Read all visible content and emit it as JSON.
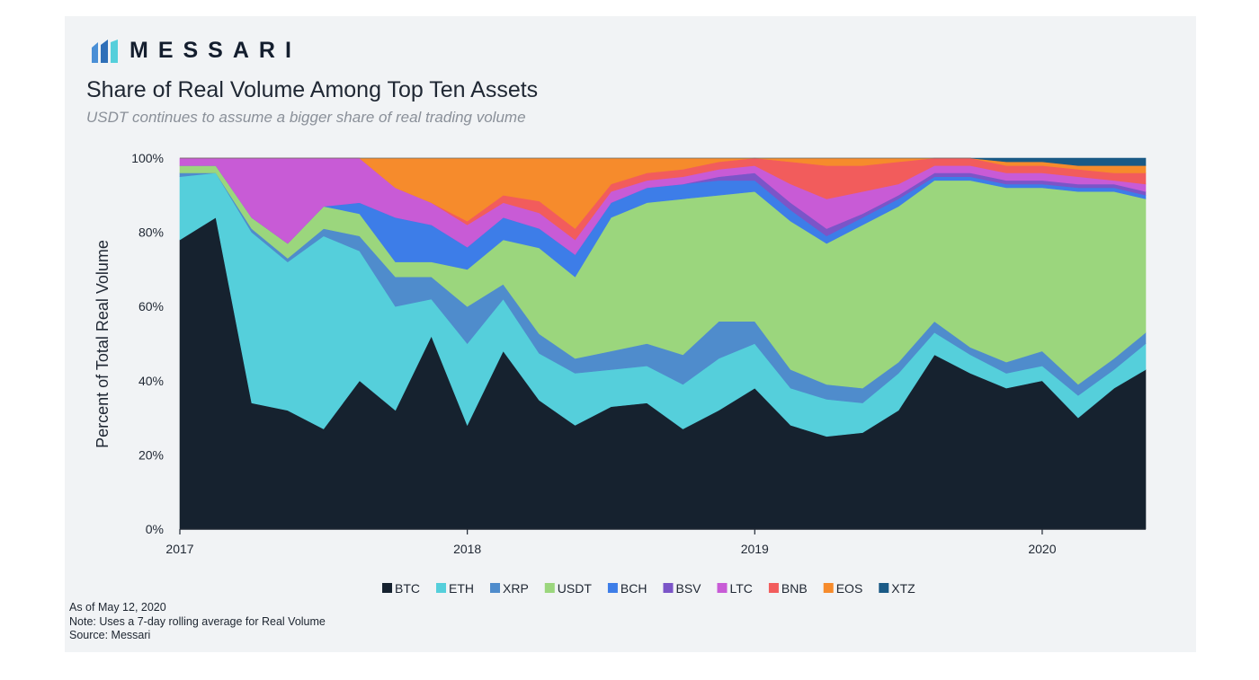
{
  "brand": {
    "name": "MESSARI",
    "logo_icon": "messari-logo-icon"
  },
  "header": {
    "title": "Share of Real Volume Among Top Ten Assets",
    "subtitle": "USDT continues to assume a bigger share of real trading volume"
  },
  "footnotes": {
    "as_of": "As of May 12, 2020",
    "note": "Note: Uses a 7-day rolling average for Real Volume",
    "source": "Source: Messari"
  },
  "chart_data": {
    "type": "area",
    "stacked": true,
    "percent": true,
    "title": "Share of Real Volume Among Top Ten Assets",
    "ylabel": "Percent of Total Real Volume",
    "xlabel": "",
    "xlim": [
      2017.0,
      2020.36
    ],
    "ylim": [
      0,
      100
    ],
    "x_ticks": [
      2017,
      2018,
      2019,
      2020
    ],
    "x_tick_labels": [
      "2017",
      "2018",
      "2019",
      "2020"
    ],
    "y_ticks": [
      0,
      20,
      40,
      60,
      80,
      100
    ],
    "y_tick_labels": [
      "0%",
      "20%",
      "40%",
      "60%",
      "80%",
      "100%"
    ],
    "grid": false,
    "legend_position": "bottom",
    "x": [
      2017.0,
      2017.125,
      2017.25,
      2017.375,
      2017.5,
      2017.625,
      2017.75,
      2017.875,
      2018.0,
      2018.125,
      2018.25,
      2018.375,
      2018.5,
      2018.625,
      2018.75,
      2018.875,
      2019.0,
      2019.125,
      2019.25,
      2019.375,
      2019.5,
      2019.625,
      2019.75,
      2019.875,
      2020.0,
      2020.125,
      2020.25,
      2020.36
    ],
    "series": [
      {
        "name": "BTC",
        "color": "#16222f",
        "values": [
          78,
          84,
          34,
          32,
          27,
          40,
          32,
          52,
          28,
          48,
          33,
          28,
          33,
          34,
          27,
          32,
          38,
          28,
          25,
          26,
          32,
          47,
          42,
          38,
          40,
          30,
          38,
          43
        ]
      },
      {
        "name": "ETH",
        "color": "#55cfdb",
        "values": [
          17,
          12,
          46,
          40,
          52,
          35,
          28,
          10,
          22,
          14,
          12,
          14,
          10,
          10,
          12,
          14,
          12,
          10,
          10,
          8,
          10,
          6,
          5,
          4,
          4,
          6,
          5,
          7
        ]
      },
      {
        "name": "XRP",
        "color": "#4f8ccc",
        "values": [
          1,
          0,
          1,
          1,
          2,
          4,
          8,
          6,
          10,
          4,
          5,
          4,
          5,
          6,
          8,
          10,
          6,
          5,
          4,
          4,
          3,
          3,
          2,
          3,
          4,
          3,
          3,
          3
        ]
      },
      {
        "name": "USDT",
        "color": "#9bd67d",
        "values": [
          2,
          2,
          3,
          4,
          6,
          6,
          4,
          4,
          10,
          12,
          22,
          22,
          36,
          38,
          42,
          34,
          35,
          40,
          38,
          44,
          42,
          38,
          45,
          47,
          44,
          52,
          45,
          36
        ]
      },
      {
        "name": "BCH",
        "color": "#3d7de8",
        "values": [
          0,
          0,
          0,
          0,
          0,
          3,
          12,
          10,
          6,
          6,
          5,
          6,
          4,
          4,
          4,
          4,
          3,
          3,
          2,
          2,
          2,
          1,
          1,
          1,
          1,
          1,
          1,
          1
        ]
      },
      {
        "name": "BSV",
        "color": "#7b55c8",
        "values": [
          0,
          0,
          0,
          0,
          0,
          0,
          0,
          0,
          0,
          0,
          0,
          0,
          0,
          0,
          0,
          1,
          2,
          2,
          2,
          1,
          1,
          1,
          1,
          1,
          1,
          1,
          1,
          1
        ]
      },
      {
        "name": "LTC",
        "color": "#c85bd6",
        "values": [
          2,
          2,
          16,
          23,
          13,
          12,
          8,
          6,
          6,
          4,
          4,
          4,
          3,
          2,
          2,
          2,
          2,
          5,
          8,
          6,
          3,
          2,
          2,
          2,
          2,
          2,
          1,
          2
        ]
      },
      {
        "name": "BNB",
        "color": "#f25c5c",
        "values": [
          0,
          0,
          0,
          0,
          0,
          0,
          0,
          0,
          1,
          2,
          3,
          3,
          2,
          2,
          2,
          2,
          2,
          6,
          9,
          7,
          6,
          2,
          2,
          2,
          2,
          2,
          2,
          3
        ]
      },
      {
        "name": "EOS",
        "color": "#f68b2c",
        "values": [
          0,
          0,
          0,
          0,
          0,
          0,
          8,
          12,
          17,
          10,
          11,
          19,
          7,
          4,
          3,
          1,
          0,
          1,
          2,
          2,
          1,
          0,
          0,
          1,
          1,
          1,
          2,
          2
        ]
      },
      {
        "name": "XTZ",
        "color": "#1a5a86",
        "values": [
          0,
          0,
          0,
          0,
          0,
          0,
          0,
          0,
          0,
          0,
          0,
          0,
          0,
          0,
          0,
          0,
          0,
          0,
          0,
          0,
          0,
          0,
          0,
          1,
          1,
          2,
          2,
          2
        ]
      }
    ]
  }
}
